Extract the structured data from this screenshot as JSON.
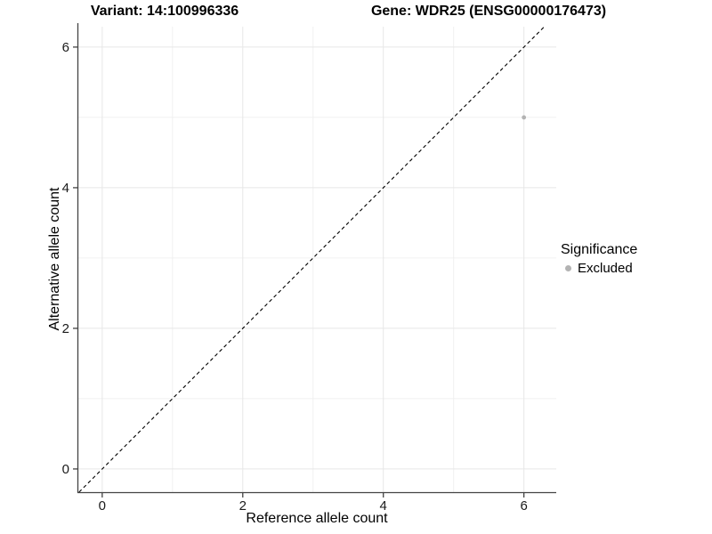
{
  "chart_data": {
    "type": "scatter",
    "title_left": "Variant: 14:100996336",
    "title_right": "Gene: WDR25 (ENSG00000176473)",
    "xlabel": "Reference allele count",
    "ylabel": "Alternative allele count",
    "xlim": [
      -0.34,
      6.46
    ],
    "ylim": [
      -0.33,
      6.29
    ],
    "xticks": [
      0,
      2,
      4,
      6
    ],
    "yticks": [
      0,
      2,
      4,
      6
    ],
    "x_minor_gridlines": [
      1,
      3,
      5
    ],
    "y_minor_gridlines": [
      1,
      3,
      5
    ],
    "grid": true,
    "identity_line": {
      "slope": 1,
      "intercept": 0,
      "style": "dashed",
      "color": "#000000"
    },
    "series": [
      {
        "name": "Excluded",
        "color": "#b3b3b3",
        "points": [
          {
            "x": 6,
            "y": 5
          }
        ]
      }
    ],
    "legend": {
      "title": "Significance",
      "position": "right",
      "entries": [
        {
          "label": "Excluded",
          "color": "#b3b3b3"
        }
      ]
    },
    "colors": {
      "axis_line": "#444444",
      "tick_mark": "#333333",
      "tick_label": "#1a1a1a",
      "grid_major": "#e7e7e7",
      "grid_minor": "#f0f0f0",
      "background": "#ffffff"
    }
  }
}
